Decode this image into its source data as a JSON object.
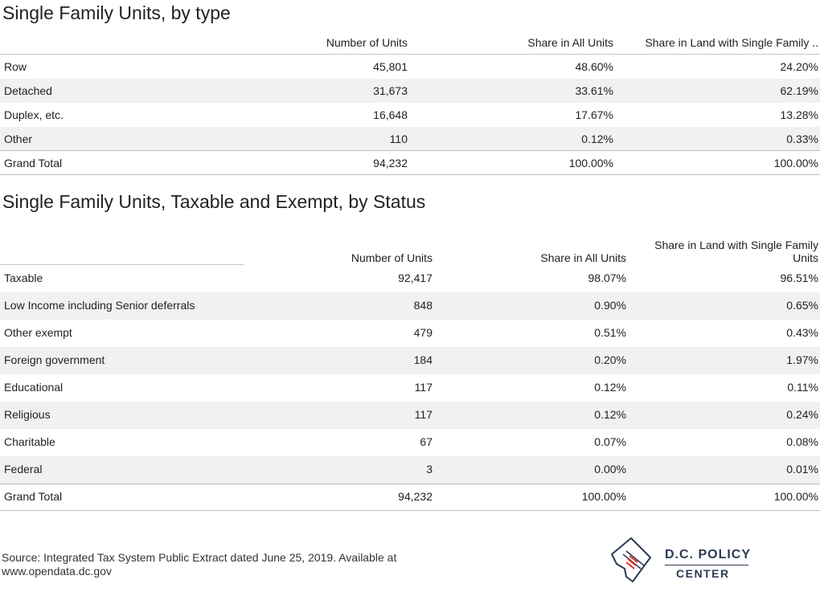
{
  "chart_data": [
    {
      "type": "table",
      "title": "Single Family Units, by type",
      "columns": [
        "",
        "Number of Units",
        "Share in All Units",
        "Share in Land with Single Family .."
      ],
      "rows": [
        {
          "label": "Row",
          "units": "45,801",
          "share_all": "48.60%",
          "share_land": "24.20%"
        },
        {
          "label": "Detached",
          "units": "31,673",
          "share_all": "33.61%",
          "share_land": "62.19%"
        },
        {
          "label": "Duplex, etc.",
          "units": "16,648",
          "share_all": "17.67%",
          "share_land": "13.28%"
        },
        {
          "label": "Other",
          "units": "110",
          "share_all": "0.12%",
          "share_land": "0.33%"
        },
        {
          "label": "Grand Total",
          "units": "94,232",
          "share_all": "100.00%",
          "share_land": "100.00%"
        }
      ]
    },
    {
      "type": "table",
      "title": "Single Family Units, Taxable and Exempt, by Status",
      "columns": [
        "",
        "Number of Units",
        "Share in All Units",
        "Share in Land with Single Family Units"
      ],
      "column_land_line1": "Share in Land with Single Family",
      "column_land_line2": "Units",
      "rows": [
        {
          "label": "Taxable",
          "units": "92,417",
          "share_all": "98.07%",
          "share_land": "96.51%"
        },
        {
          "label": "Low Income including Senior deferrals",
          "units": "848",
          "share_all": "0.90%",
          "share_land": "0.65%"
        },
        {
          "label": "Other exempt",
          "units": "479",
          "share_all": "0.51%",
          "share_land": "0.43%"
        },
        {
          "label": "Foreign government",
          "units": "184",
          "share_all": "0.20%",
          "share_land": "1.97%"
        },
        {
          "label": "Educational",
          "units": "117",
          "share_all": "0.12%",
          "share_land": "0.11%"
        },
        {
          "label": "Religious",
          "units": "117",
          "share_all": "0.12%",
          "share_land": "0.24%"
        },
        {
          "label": "Charitable",
          "units": "67",
          "share_all": "0.07%",
          "share_land": "0.08%"
        },
        {
          "label": "Federal",
          "units": "3",
          "share_all": "0.00%",
          "share_land": "0.01%"
        },
        {
          "label": "Grand Total",
          "units": "94,232",
          "share_all": "100.00%",
          "share_land": "100.00%"
        }
      ]
    }
  ],
  "footer": {
    "source_line1": "Source: Integrated Tax System Public Extract dated June 25, 2019. Available at",
    "source_line2": "www.opendata.dc.gov"
  },
  "logo": {
    "line1": "D.C. POLICY",
    "line2": "CENTER",
    "icon": "dc-map-icon",
    "colors": {
      "navy": "#2b3a55",
      "red": "#e0312f"
    }
  }
}
